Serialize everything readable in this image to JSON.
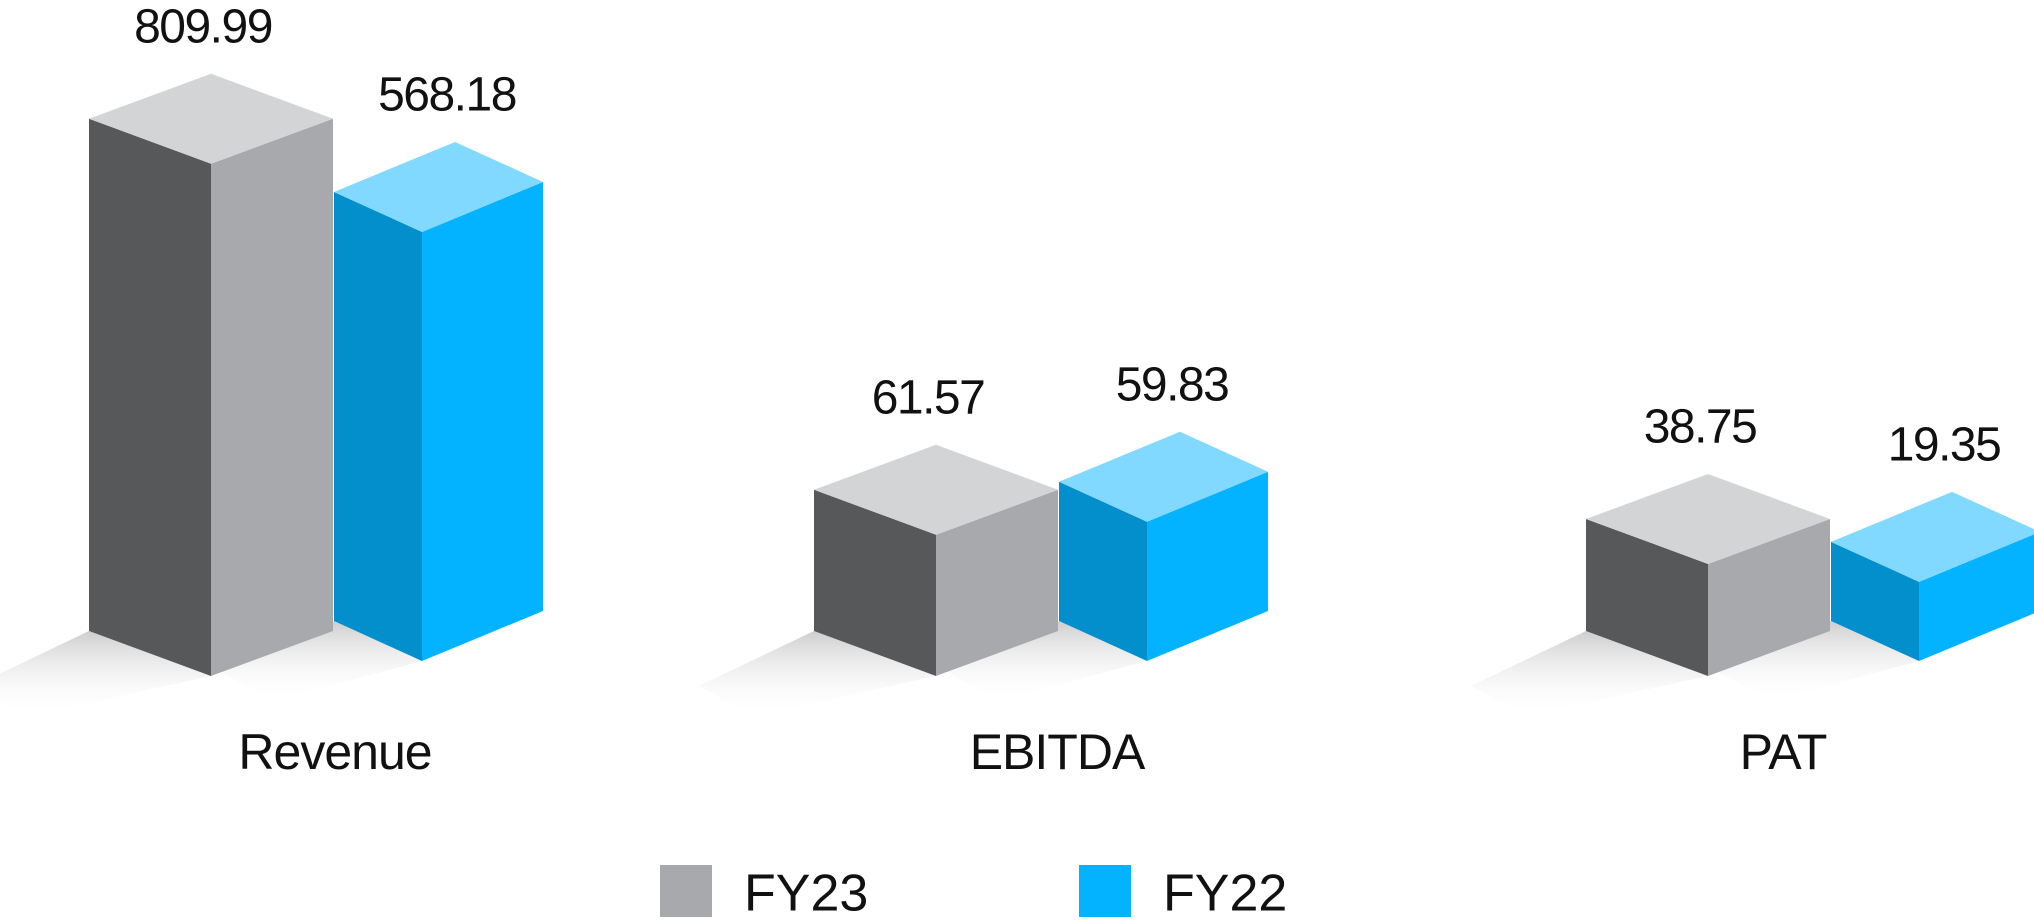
{
  "chart_data": {
    "type": "bar3d",
    "categories": [
      "Revenue",
      "EBITDA",
      "PAT"
    ],
    "series": [
      {
        "name": "FY23",
        "color": "#a7a9ac",
        "values": [
          809.99,
          61.57,
          38.75
        ]
      },
      {
        "name": "FY22",
        "color": "#03b3ff",
        "values": [
          568.18,
          59.83,
          19.35
        ]
      }
    ]
  }
}
